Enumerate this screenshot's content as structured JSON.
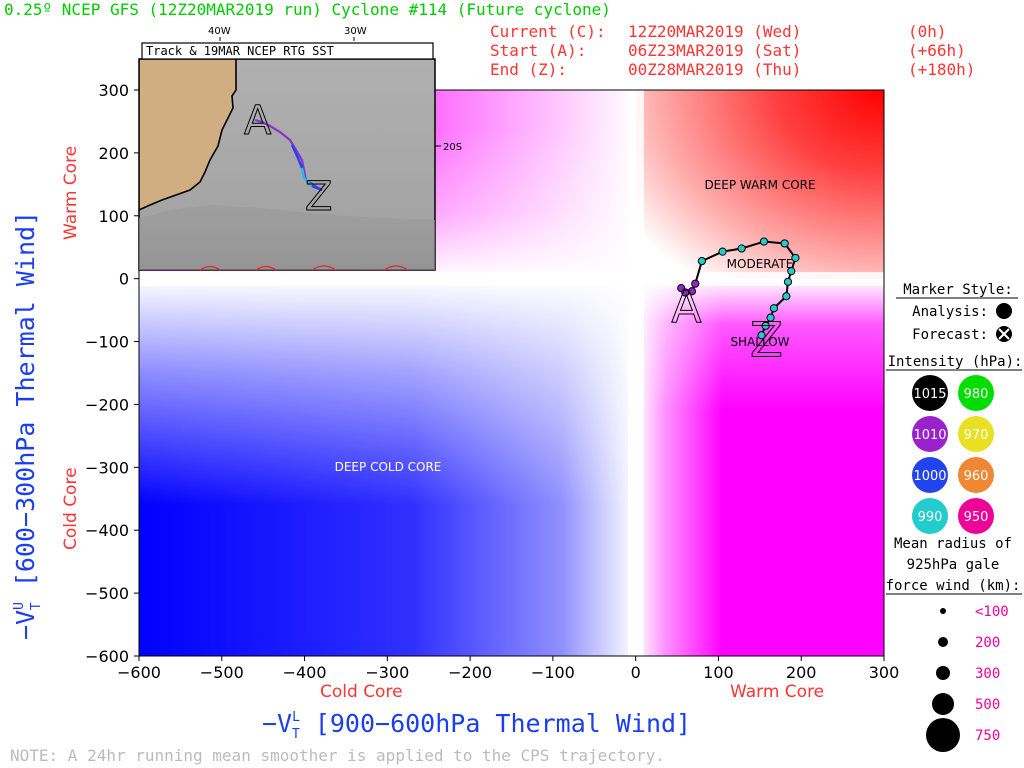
{
  "header": {
    "title": "0.25º NCEP GFS (12Z20MAR2019 run) Cyclone #114 (Future cyclone)",
    "current": {
      "label": "Current (C):",
      "time": "12Z20MAR2019 (Wed)",
      "offset": "(0h)"
    },
    "start": {
      "label": "Start (A):",
      "time": "06Z23MAR2019 (Sat)",
      "offset": "(+66h)"
    },
    "end": {
      "label": "End (Z):",
      "time": "00Z28MAR2019 (Thu)",
      "offset": "(+180h)"
    }
  },
  "inset": {
    "title": "Track & 19MAR NCEP RTG SST",
    "lon_labels": [
      "40W",
      "30W"
    ],
    "lat_label": "20S",
    "start_letter": "A",
    "end_letter": "Z"
  },
  "axes": {
    "xlabel": "−V_T^L [900−600hPa Thermal Wind]",
    "xlabel_main": "−V",
    "xlabel_sup": "L",
    "xlabel_sub": "T",
    "xlabel_rest": " [900−600hPa Thermal Wind]",
    "ylabel": "−V_T^U [600−300hPa Thermal Wind]",
    "ylabel_main": "−V",
    "ylabel_sup": "U",
    "ylabel_sub": "T",
    "ylabel_rest": " [600−300hPa Thermal Wind]",
    "x_left_label": "Cold Core",
    "x_right_label": "Warm Core",
    "y_top_label": "Warm Core",
    "y_bottom_label": "Cold Core"
  },
  "quadrant_labels": {
    "deep_warm": "DEEP WARM CORE",
    "deep_cold": "DEEP COLD CORE",
    "moderate": "MODERATE",
    "shallow": "SHALLOW"
  },
  "legend": {
    "marker_style": "Marker Style:",
    "analysis": "Analysis:",
    "forecast": "Forecast:",
    "intensity_title": "Intensity (hPa):",
    "intensity": [
      {
        "value": "1015",
        "color": "#000000"
      },
      {
        "value": "980",
        "color": "#00dd00"
      },
      {
        "value": "1010",
        "color": "#9922cc"
      },
      {
        "value": "970",
        "color": "#e8e020"
      },
      {
        "value": "1000",
        "color": "#2244ee"
      },
      {
        "value": "960",
        "color": "#ee8833"
      },
      {
        "value": "990",
        "color": "#22cccc"
      },
      {
        "value": "950",
        "color": "#ee0099"
      }
    ],
    "radius_title_1": "Mean radius of",
    "radius_title_2": "925hPa gale",
    "radius_title_3": "force wind (km):",
    "radii": [
      "<100",
      "200",
      "300",
      "500",
      "750"
    ]
  },
  "note": "NOTE:  A 24hr running mean smoother is applied to the CPS trajectory.",
  "chart_data": {
    "type": "scatter",
    "title": "0.25º NCEP GFS (12Z20MAR2019 run) Cyclone #114 (Future cyclone)",
    "xlabel": "−VTL [900−600hPa Thermal Wind]",
    "ylabel": "−VTU [600−300hPa Thermal Wind]",
    "xlim": [
      -600,
      300
    ],
    "ylim": [
      -600,
      300
    ],
    "x_ticks": [
      -600,
      -500,
      -400,
      -300,
      -200,
      -100,
      0,
      100,
      200,
      300
    ],
    "y_ticks": [
      -600,
      -500,
      -400,
      -300,
      -200,
      -100,
      0,
      100,
      200,
      300
    ],
    "x_tick_labels": [
      "−600",
      "−500",
      "−400",
      "−300",
      "−200",
      "−100",
      "0",
      "100",
      "200",
      "300"
    ],
    "y_tick_labels": [
      "−600",
      "−500",
      "−400",
      "−300",
      "−200",
      "−100",
      "0",
      "100",
      "200",
      "300"
    ],
    "track": [
      {
        "x": 55,
        "y": -15,
        "c": "#9922cc"
      },
      {
        "x": 60,
        "y": -22,
        "c": "#9922cc"
      },
      {
        "x": 68,
        "y": -20,
        "c": "#9922cc"
      },
      {
        "x": 72,
        "y": -8,
        "c": "#9922cc"
      },
      {
        "x": 80,
        "y": 28,
        "c": "#22cccc"
      },
      {
        "x": 105,
        "y": 43,
        "c": "#22cccc"
      },
      {
        "x": 128,
        "y": 48,
        "c": "#22cccc"
      },
      {
        "x": 155,
        "y": 59,
        "c": "#22cccc"
      },
      {
        "x": 180,
        "y": 56,
        "c": "#22cccc"
      },
      {
        "x": 193,
        "y": 33,
        "c": "#22cccc"
      },
      {
        "x": 188,
        "y": 12,
        "c": "#22cccc"
      },
      {
        "x": 184,
        "y": -5,
        "c": "#22cccc"
      },
      {
        "x": 182,
        "y": -28,
        "c": "#22cccc"
      },
      {
        "x": 167,
        "y": -47,
        "c": "#22cccc"
      },
      {
        "x": 163,
        "y": -62,
        "c": "#22cccc"
      },
      {
        "x": 157,
        "y": -75,
        "c": "#22cccc"
      },
      {
        "x": 152,
        "y": -90,
        "c": "#22cccc"
      }
    ],
    "start_point": {
      "x": 60,
      "y": -15
    },
    "end_point": {
      "x": 155,
      "y": -60
    }
  }
}
